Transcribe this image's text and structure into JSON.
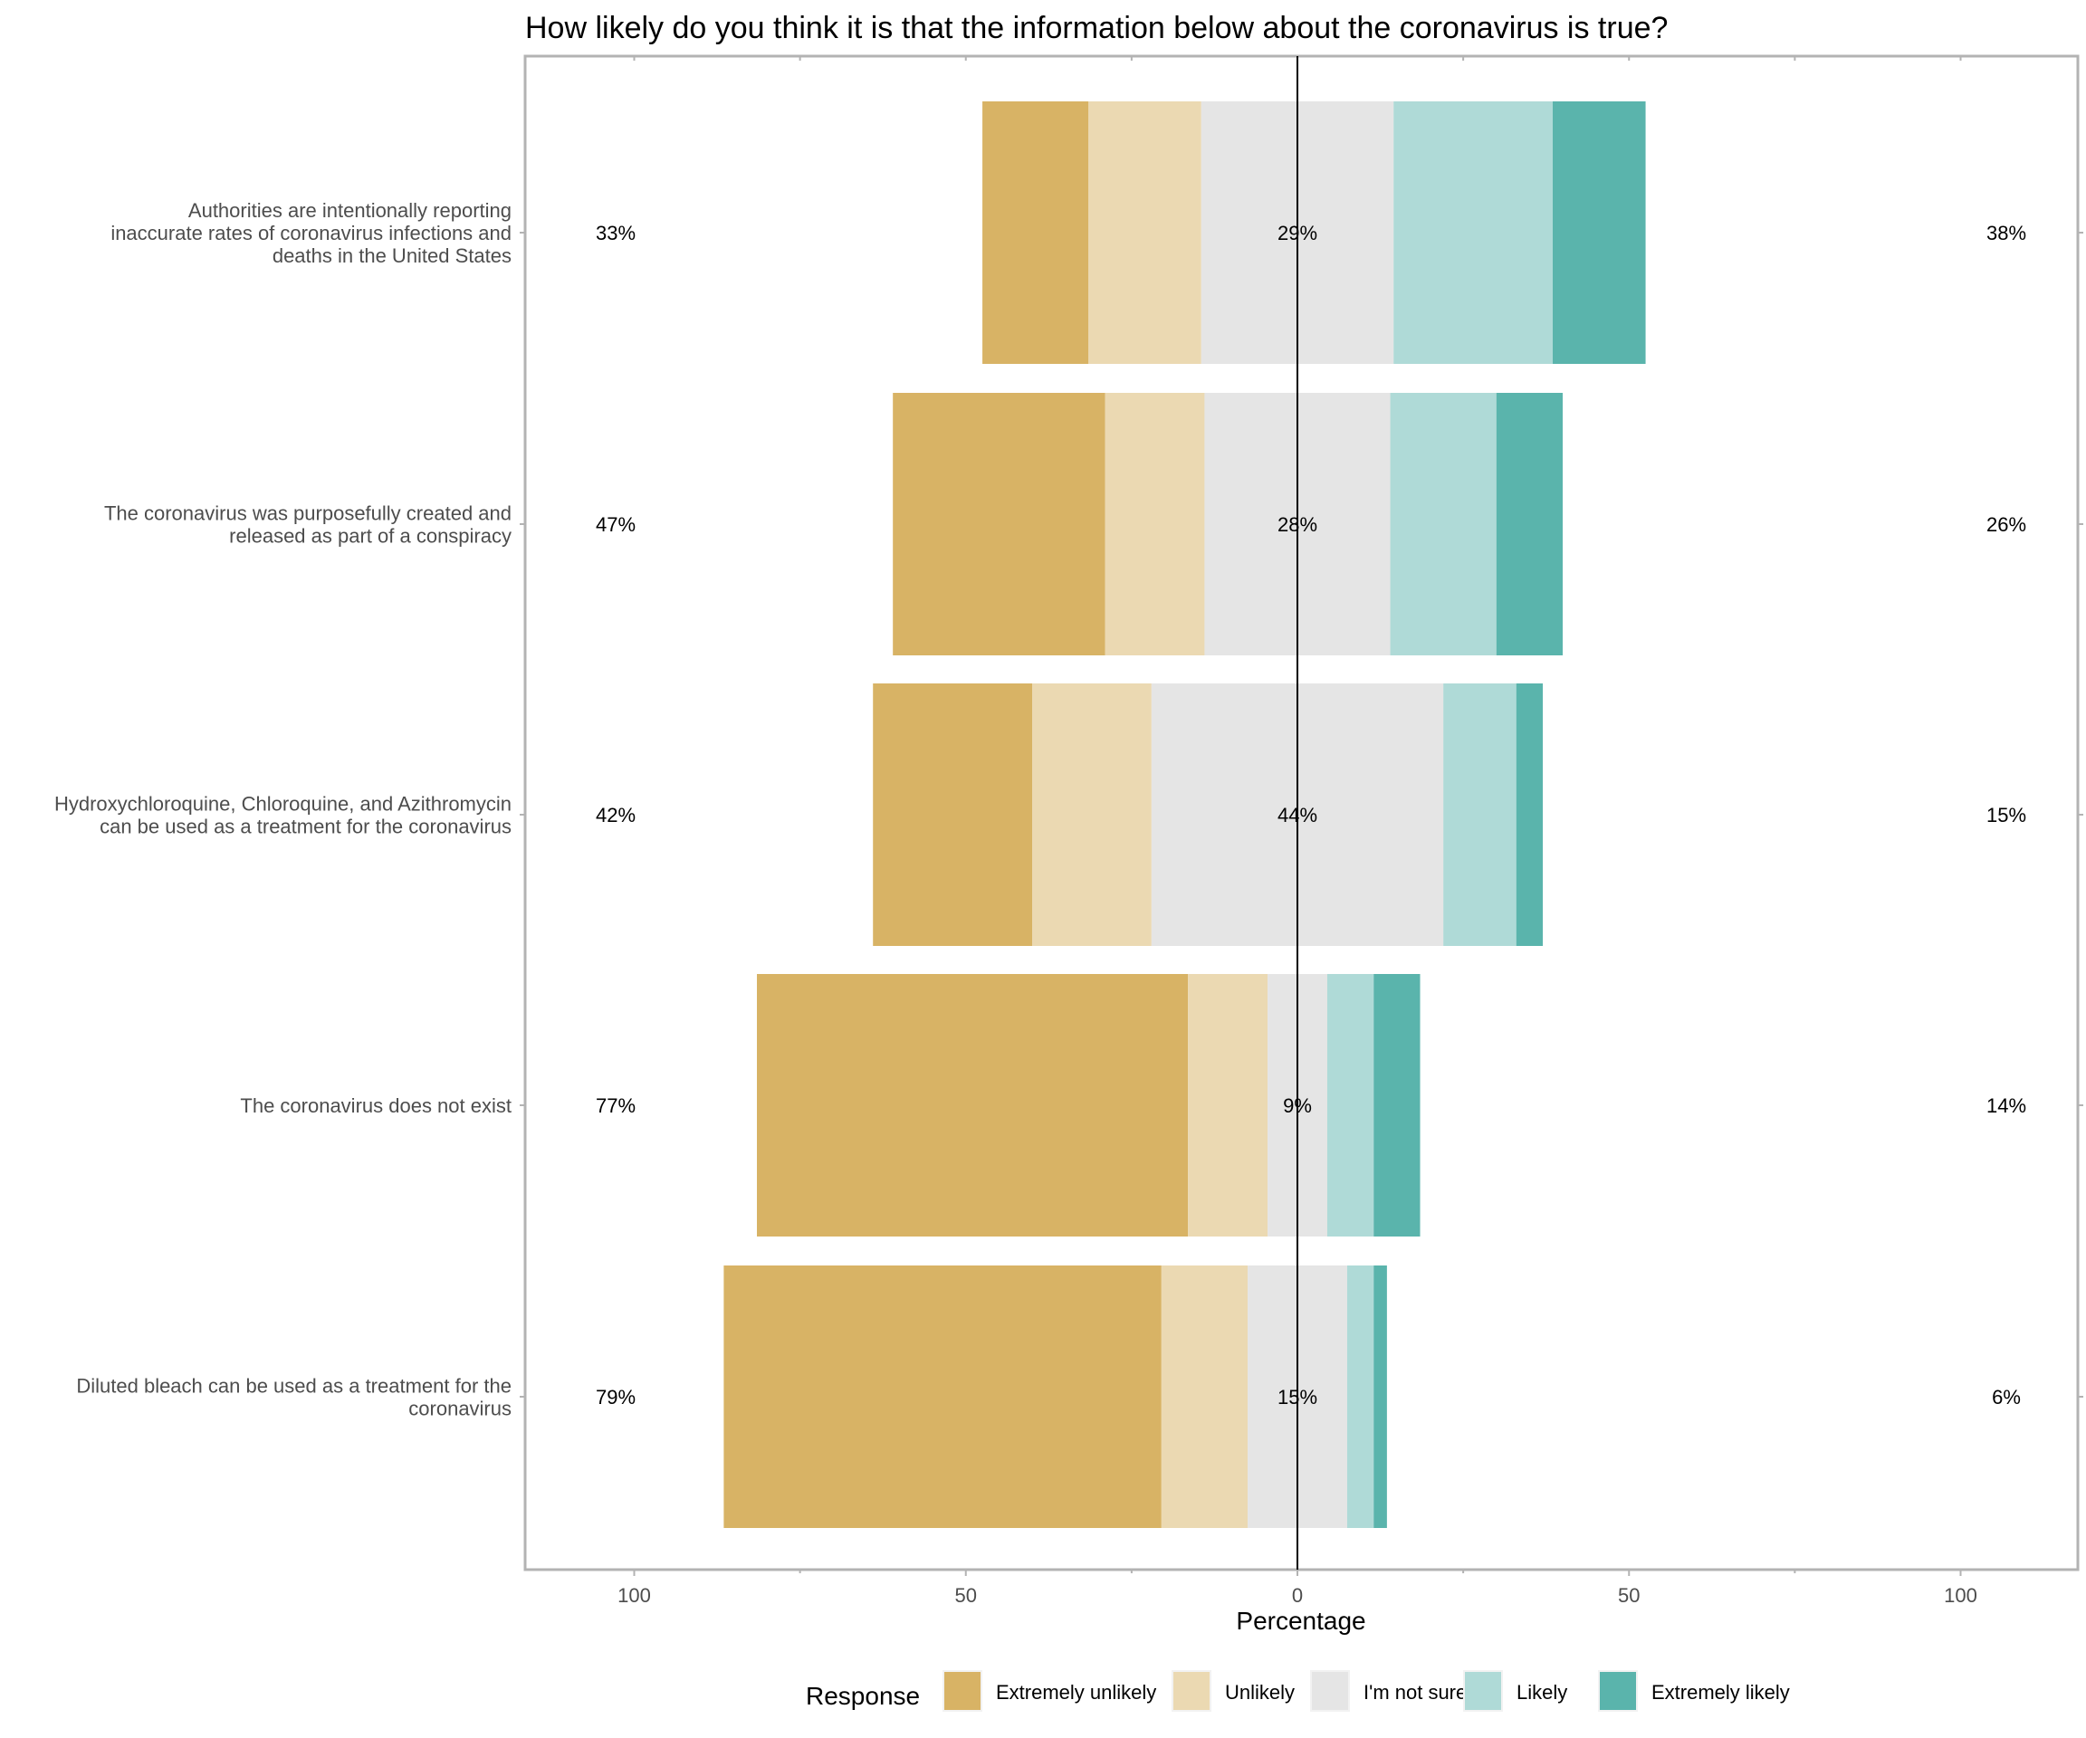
{
  "chart_data": {
    "type": "bar",
    "subtype": "diverging-stacked-likert",
    "orientation": "horizontal",
    "title": "How likely do you think it is that the information below about the coronavirus is true?",
    "xlabel": "Percentage",
    "ylabel": "",
    "xlim": [
      -100,
      100
    ],
    "x_ticks": [
      -100,
      -50,
      0,
      50,
      100
    ],
    "x_tick_labels": [
      "100",
      "50",
      "0",
      "50",
      "100"
    ],
    "grid": false,
    "legend": {
      "title": "Response",
      "position": "bottom"
    },
    "levels": [
      "Extremely unlikely",
      "Unlikely",
      "I'm not sure",
      "Likely",
      "Extremely likely"
    ],
    "colors": [
      "#D8B365",
      "#EBD9B2",
      "#E5E5E5",
      "#AFDAD7",
      "#5AB4AC"
    ],
    "categories": [
      "Authorities are intentionally reporting\ninaccurate rates of coronavirus infections and\ndeaths in the United States",
      "The coronavirus was purposefully created and\nreleased as part of a conspiracy",
      "Hydroxychloroquine, Chloroquine, and Azithromycin\ncan be used as a treatment for the coronavirus",
      "The coronavirus does not exist",
      "Diluted bleach can be used as a treatment for the\ncoronavirus"
    ],
    "series": [
      {
        "name": "Extremely unlikely",
        "values": [
          16,
          32,
          24,
          65,
          66
        ]
      },
      {
        "name": "Unlikely",
        "values": [
          17,
          15,
          18,
          12,
          13
        ]
      },
      {
        "name": "I'm not sure",
        "values": [
          29,
          28,
          44,
          9,
          15
        ]
      },
      {
        "name": "Likely",
        "values": [
          24,
          16,
          11,
          7,
          4
        ]
      },
      {
        "name": "Extremely likely",
        "values": [
          14,
          10,
          4,
          7,
          2
        ]
      }
    ],
    "low_labels": [
      "33%",
      "47%",
      "42%",
      "77%",
      "79%"
    ],
    "neutral_labels": [
      "29%",
      "28%",
      "44%",
      "9%",
      "15%"
    ],
    "high_labels": [
      "38%",
      "26%",
      "15%",
      "14%",
      "6%"
    ]
  }
}
